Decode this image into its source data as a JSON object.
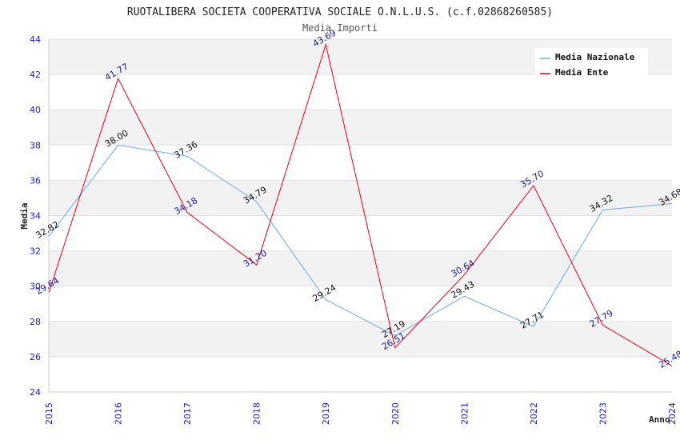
{
  "chart_data": {
    "type": "line",
    "title": "RUOTALIBERA SOCIETA COOPERATIVA SOCIALE O.N.L.U.S. (c.f.02868260585)",
    "subtitle": "Media Importi",
    "xlabel": "Anno",
    "ylabel": "Media",
    "ylim": [
      24,
      44
    ],
    "yticks": [
      24,
      26,
      28,
      30,
      32,
      34,
      36,
      38,
      40,
      42,
      44
    ],
    "categories": [
      "2015",
      "2016",
      "2017",
      "2018",
      "2019",
      "2020",
      "2021",
      "2022",
      "2023",
      "2024"
    ],
    "grid": "horizontal-bands",
    "legend_position": "top-right",
    "series": [
      {
        "name": "Media Nazionale",
        "color": "#6aaae6",
        "values": [
          32.82,
          38.0,
          37.36,
          34.79,
          29.24,
          27.19,
          29.43,
          27.71,
          34.32,
          34.68
        ],
        "labels": [
          "32.82",
          "38.00",
          "37.36",
          "34.79",
          "29.24",
          "27.19",
          "29.43",
          "27.71",
          "34.32",
          "34.68"
        ]
      },
      {
        "name": "Media Ente",
        "color": "#e8001c",
        "values": [
          29.64,
          41.77,
          34.18,
          31.2,
          43.69,
          26.51,
          30.64,
          35.7,
          27.79,
          25.48
        ],
        "labels": [
          "29.64",
          "41.77",
          "34.18",
          "31.20",
          "43.69",
          "26.51",
          "30.64",
          "35.70",
          "27.79",
          "25.48"
        ]
      }
    ]
  }
}
